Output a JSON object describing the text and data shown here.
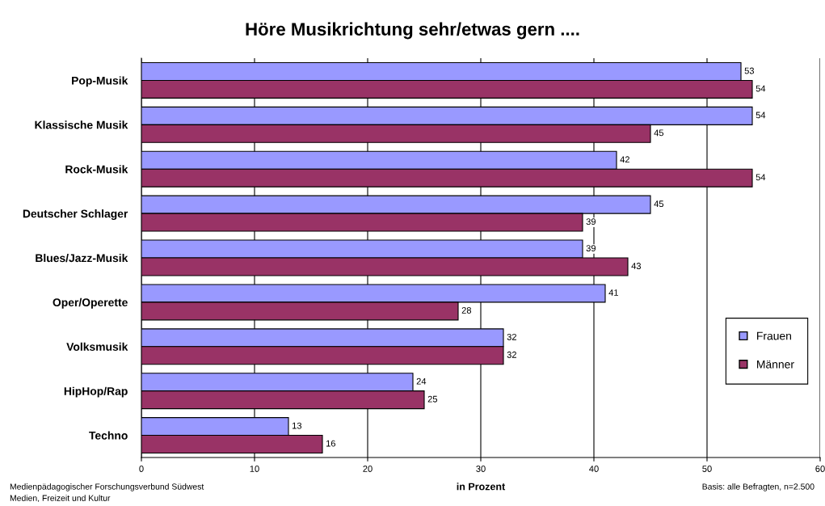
{
  "chart_data": {
    "type": "bar",
    "orientation": "horizontal",
    "title": "Höre Musikrichtung sehr/etwas gern ....",
    "xlabel": "in Prozent",
    "categories": [
      "Pop-Musik",
      "Klassische Musik",
      "Rock-Musik",
      "Deutscher Schlager",
      "Blues/Jazz-Musik",
      "Oper/Operette",
      "Volksmusik",
      "HipHop/Rap",
      "Techno"
    ],
    "series": [
      {
        "name": "Frauen",
        "color": "#9999ff",
        "values": [
          53,
          54,
          42,
          45,
          39,
          41,
          32,
          24,
          13
        ]
      },
      {
        "name": "Männer",
        "color": "#993366",
        "values": [
          54,
          45,
          54,
          39,
          43,
          28,
          32,
          25,
          16
        ]
      }
    ],
    "xlim": [
      0,
      60
    ],
    "xticks": [
      0,
      10,
      20,
      30,
      40,
      50,
      60
    ],
    "grid": "x",
    "legend": "lower right",
    "data_labels": true,
    "annotations": [
      "Medienpädagogischer Forschungsverbund Südwest\nMedien, Freizeit und Kultur",
      "Basis: alle Befragten, n=2.500"
    ]
  }
}
